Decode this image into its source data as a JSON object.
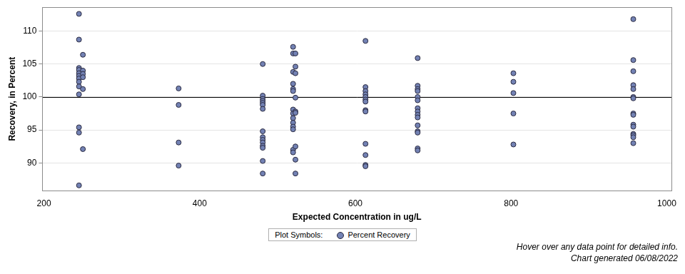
{
  "chart_data": {
    "type": "scatter",
    "x_label": "Expected Concentration in ug/L",
    "y_label": "Recovery, in Percent",
    "legend_title": "Plot Symbols:",
    "annotations": [
      "Hover over any data point for detailed info.",
      "Chart generated 06/08/2022"
    ],
    "hlines": [
      100
    ],
    "legend": "bottom",
    "grid": true,
    "marker": "circle",
    "color": "#7382b4",
    "xlim": [
      198,
      1006
    ],
    "xticks": [
      200,
      400,
      600,
      800,
      1000
    ],
    "ylim": [
      85.8,
      113.6
    ],
    "yticks": [
      90,
      95,
      100,
      105,
      110
    ],
    "series": [
      {
        "name": "Percent Recovery",
        "color": "#7382b4",
        "x": [
          245,
          245,
          245,
          245,
          245,
          245,
          245,
          245,
          245,
          245,
          245,
          245,
          245,
          250,
          250,
          250,
          250,
          250,
          250,
          373,
          373,
          373,
          373,
          481,
          481,
          481,
          481,
          481,
          481,
          481,
          481,
          481,
          481,
          481,
          481,
          481,
          481,
          481,
          520,
          520,
          520,
          520,
          520,
          520,
          520,
          520,
          520,
          520,
          520,
          520,
          520,
          520,
          523,
          523,
          523,
          523,
          523,
          523,
          523,
          523,
          523,
          613,
          613,
          613,
          613,
          613,
          613,
          613,
          613,
          613,
          613,
          613,
          613,
          613,
          680,
          680,
          680,
          680,
          680,
          680,
          680,
          680,
          680,
          680,
          680,
          680,
          680,
          680,
          680,
          803,
          803,
          803,
          803,
          803,
          957,
          957,
          957,
          957,
          957,
          957,
          957,
          957,
          957,
          957,
          957,
          957,
          957,
          957,
          957
        ],
        "values": [
          112.6,
          108.7,
          104.4,
          104.1,
          103.6,
          103.2,
          102.8,
          102.3,
          101.6,
          100.4,
          95.4,
          94.6,
          86.6,
          106.4,
          104.0,
          103.5,
          103.0,
          101.2,
          92.1,
          101.3,
          98.8,
          93.1,
          89.6,
          105.0,
          100.2,
          99.7,
          99.4,
          99.1,
          98.8,
          98.2,
          94.8,
          93.9,
          93.5,
          93.1,
          92.6,
          92.3,
          90.3,
          88.4,
          107.6,
          106.6,
          103.8,
          102.0,
          101.2,
          100.9,
          98.1,
          97.5,
          96.8,
          96.1,
          95.5,
          95.1,
          92.0,
          91.6,
          106.6,
          104.6,
          103.6,
          99.9,
          97.8,
          97.6,
          92.5,
          90.5,
          88.4,
          108.5,
          101.5,
          100.9,
          100.4,
          100.0,
          99.6,
          99.3,
          98.0,
          97.8,
          92.9,
          91.2,
          89.7,
          89.5,
          105.9,
          101.7,
          101.2,
          100.9,
          100.0,
          99.5,
          98.3,
          97.8,
          97.3,
          96.9,
          95.7,
          94.8,
          94.6,
          92.2,
          91.9,
          103.6,
          102.3,
          100.6,
          97.5,
          92.8,
          111.8,
          105.6,
          103.9,
          101.8,
          101.2,
          100.0,
          99.8,
          97.5,
          97.3,
          95.8,
          95.5,
          94.4,
          94.2,
          93.9,
          93.0
        ]
      }
    ]
  }
}
